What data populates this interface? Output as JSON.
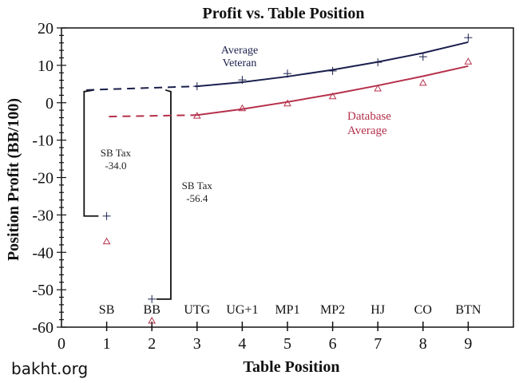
{
  "watermark": "bakht.org",
  "chart_data": {
    "type": "line",
    "title": "Profit vs. Table Position",
    "xlabel": "Table Position",
    "ylabel": "Position Profit (BB/100)",
    "xlim": [
      0,
      10
    ],
    "ylim": [
      -60,
      20
    ],
    "x_ticks": [
      0,
      1,
      2,
      3,
      4,
      5,
      6,
      7,
      8,
      9
    ],
    "y_ticks": [
      20,
      10,
      0,
      -10,
      -20,
      -30,
      -40,
      -50,
      -60
    ],
    "y_minor_step": 2,
    "grid": false,
    "position_labels": [
      {
        "x": 1,
        "label": "SB"
      },
      {
        "x": 2,
        "label": "BB"
      },
      {
        "x": 3,
        "label": "UTG"
      },
      {
        "x": 4,
        "label": "UG+1"
      },
      {
        "x": 5,
        "label": "MP1"
      },
      {
        "x": 6,
        "label": "MP2"
      },
      {
        "x": 7,
        "label": "HJ"
      },
      {
        "x": 8,
        "label": "CO"
      },
      {
        "x": 9,
        "label": "BTN"
      }
    ],
    "series": [
      {
        "name": "Average Veteran",
        "label_lines": [
          "Average",
          "Veteran"
        ],
        "marker": "plus",
        "color": "#1a1f4d",
        "x": [
          1,
          2,
          3,
          4,
          5,
          6,
          7,
          8,
          9
        ],
        "values": [
          -30.3,
          -52.5,
          4.4,
          6.1,
          7.8,
          8.5,
          10.8,
          12.3,
          17.4
        ],
        "fit_x": [
          3,
          4,
          5,
          6,
          7,
          8,
          9
        ],
        "fit_values": [
          4.4,
          5.5,
          7.0,
          8.8,
          10.9,
          13.3,
          16.2
        ],
        "extrapolated_value": 3.4
      },
      {
        "name": "Database Average",
        "label_lines": [
          "Database",
          "Average"
        ],
        "marker": "triangle",
        "color": "#b5304a",
        "x": [
          1,
          2,
          3,
          4,
          5,
          6,
          7,
          8,
          9
        ],
        "values": [
          -37.1,
          -58.3,
          -3.5,
          -1.5,
          -0.2,
          1.7,
          3.8,
          5.3,
          11.0
        ],
        "fit_x": [
          3,
          4,
          5,
          6,
          7,
          8,
          9
        ],
        "fit_values": [
          -3.3,
          -1.7,
          0.2,
          2.3,
          4.6,
          7.1,
          9.8
        ],
        "extrapolated_value": -3.7
      }
    ],
    "annotations": [
      {
        "lines": [
          "SB Tax",
          "-34.0"
        ],
        "value": -34.0
      },
      {
        "lines": [
          "SB Tax",
          "-56.4"
        ],
        "value": -56.4
      }
    ]
  }
}
